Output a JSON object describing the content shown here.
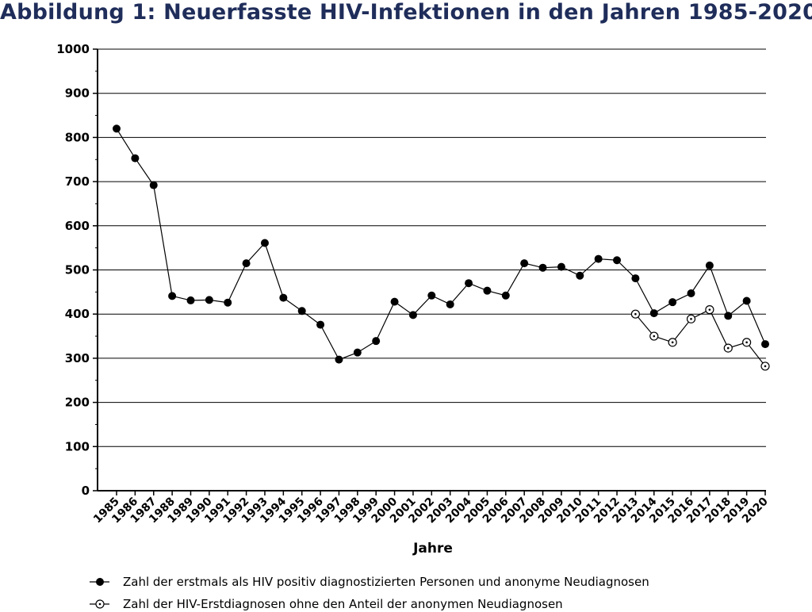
{
  "chart_data": {
    "type": "line",
    "title": "Abbildung 1: Neuerfasste HIV-Infektionen in den Jahren 1985-2020",
    "xlabel": "Jahre",
    "ylabel": "",
    "ylim": [
      0,
      1000
    ],
    "yticks": [
      0,
      100,
      200,
      300,
      400,
      500,
      600,
      700,
      800,
      900,
      1000
    ],
    "grid": true,
    "legend_position": "bottom",
    "categories": [
      "1985",
      "1986",
      "1987",
      "1988",
      "1989",
      "1990",
      "1991",
      "1992",
      "1993",
      "1994",
      "1995",
      "1996",
      "1997",
      "1998",
      "1999",
      "2000",
      "2001",
      "2002",
      "2003",
      "2004",
      "2005",
      "2006",
      "2007",
      "2008",
      "2009",
      "2010",
      "2011",
      "2012",
      "2013",
      "2014",
      "2015",
      "2016",
      "2017",
      "2018",
      "2019",
      "2020"
    ],
    "series": [
      {
        "name": "Zahl der erstmals als HIV positiv diagnostizierten Personen und anonyme Neudiagnosen",
        "marker": "filled-circle",
        "values": [
          820,
          753,
          692,
          441,
          431,
          432,
          426,
          515,
          561,
          437,
          407,
          376,
          297,
          313,
          339,
          428,
          398,
          442,
          422,
          470,
          453,
          442,
          515,
          505,
          507,
          487,
          525,
          522,
          481,
          402,
          427,
          447,
          510,
          396,
          430,
          332
        ]
      },
      {
        "name": "Zahl der HIV-Erstdiagnosen ohne den Anteil der anonymen Neudiagnosen",
        "marker": "open-circle-dot",
        "values": [
          null,
          null,
          null,
          null,
          null,
          null,
          null,
          null,
          null,
          null,
          null,
          null,
          null,
          null,
          null,
          null,
          null,
          null,
          null,
          null,
          null,
          null,
          null,
          null,
          null,
          null,
          null,
          null,
          400,
          350,
          336,
          389,
          410,
          323,
          336,
          282
        ]
      }
    ]
  }
}
